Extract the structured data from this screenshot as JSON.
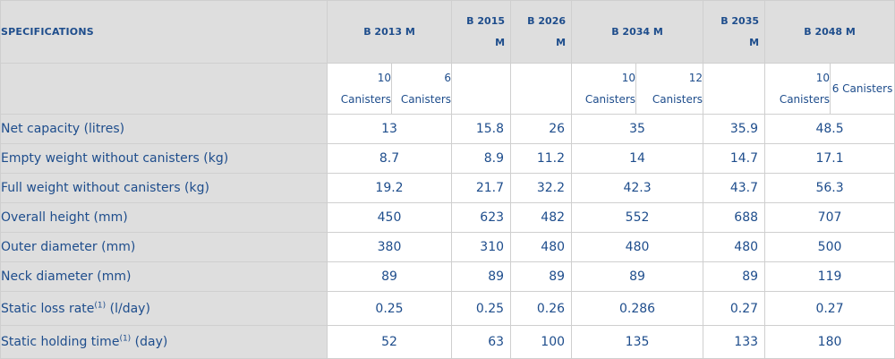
{
  "header": {
    "specifications_label": "SPECIFICATIONS",
    "models": [
      "B 2013 M",
      "B 2015 M",
      "B 2026 M",
      "B 2034 M",
      "B 2035 M",
      "B 2048 M"
    ],
    "model_b2015_line1": "B 2015",
    "model_b2015_line2": "M",
    "model_b2026_line1": "B 2026",
    "model_b2026_line2": "M",
    "model_b2035_line1": "B 2035",
    "model_b2035_line2": "M"
  },
  "subheader": {
    "b2013_a_num": "10",
    "b2013_a_word": "Canisters",
    "b2013_b_num": "6",
    "b2013_b_word": "Canisters",
    "b2034_a_num": "10",
    "b2034_a_word": "Canisters",
    "b2034_b_num": "12",
    "b2034_b_word": "Canisters",
    "b2048_a_num": "10",
    "b2048_a_word": "Canisters",
    "b2048_b": "6 Canisters"
  },
  "footnote_marker": "(1)",
  "rows": [
    {
      "label": "Net capacity (litres)",
      "values": [
        "13",
        "15.8",
        "26",
        "35",
        "35.9",
        "48.5"
      ]
    },
    {
      "label": "Empty weight without canisters (kg)",
      "values": [
        "8.7",
        "8.9",
        "11.2",
        "14",
        "14.7",
        "17.1"
      ]
    },
    {
      "label": "Full weight without canisters (kg)",
      "values": [
        "19.2",
        "21.7",
        "32.2",
        "42.3",
        "43.7",
        "56.3"
      ]
    },
    {
      "label": "Overall height (mm)",
      "values": [
        "450",
        "623",
        "482",
        "552",
        "688",
        "707"
      ]
    },
    {
      "label": "Outer diameter (mm)",
      "values": [
        "380",
        "310",
        "480",
        "480",
        "480",
        "500"
      ]
    },
    {
      "label": "Neck diameter (mm)",
      "values": [
        "89",
        "89",
        "89",
        "89",
        "89",
        "119"
      ]
    },
    {
      "label_pre": "Static loss rate",
      "label_post": " (l/day)",
      "values": [
        "0.25",
        "0.25",
        "0.26",
        "0.286",
        "0.27",
        "0.27"
      ]
    },
    {
      "label_pre": "Static holding time",
      "label_post": " (day)",
      "values": [
        "52",
        "63",
        "100",
        "135",
        "133",
        "180"
      ]
    }
  ],
  "colors": {
    "text": "#1e4d8c",
    "header_bg": "#dedede",
    "border": "#cfcfcf"
  }
}
